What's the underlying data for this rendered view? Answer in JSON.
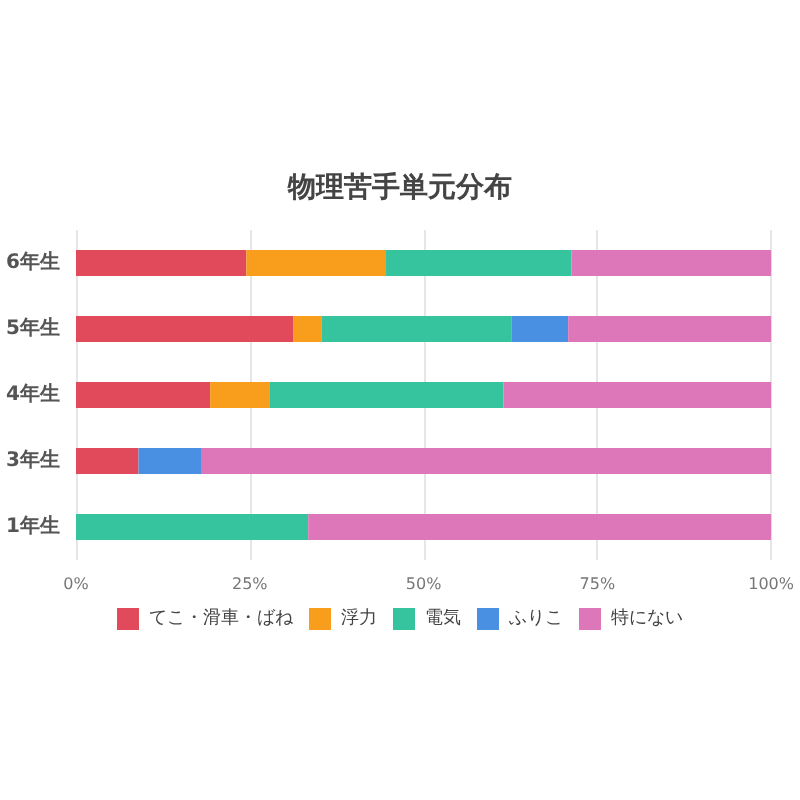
{
  "chart_data": {
    "type": "bar",
    "orientation": "horizontal",
    "stacked": true,
    "title": "物理苦手単元分布",
    "categories": [
      "6年生",
      "5年生",
      "4年生",
      "3年生",
      "1年生"
    ],
    "series": [
      {
        "name": "てこ・滑車・ばね",
        "color": "#e04a5b",
        "values": [
          24.5,
          31.3,
          19.3,
          9.0,
          0
        ]
      },
      {
        "name": "浮力",
        "color": "#f99d1c",
        "values": [
          20.1,
          4.0,
          8.6,
          0,
          0
        ]
      },
      {
        "name": "電気",
        "color": "#36c49f",
        "values": [
          26.7,
          27.4,
          33.6,
          0,
          33.4
        ]
      },
      {
        "name": "ふりこ",
        "color": "#4a90e2",
        "values": [
          0,
          8.1,
          0,
          9.1,
          0
        ]
      },
      {
        "name": "特にない",
        "color": "#dd77b9",
        "values": [
          28.7,
          29.2,
          38.5,
          81.9,
          66.6
        ]
      }
    ],
    "xlim": [
      0,
      100
    ],
    "xticks": [
      {
        "value": 0,
        "label": "0%"
      },
      {
        "value": 25,
        "label": "25%"
      },
      {
        "value": 50,
        "label": "50%"
      },
      {
        "value": 75,
        "label": "75%"
      },
      {
        "value": 100,
        "label": "100%"
      }
    ],
    "grid": "x",
    "legend": "bottom"
  }
}
